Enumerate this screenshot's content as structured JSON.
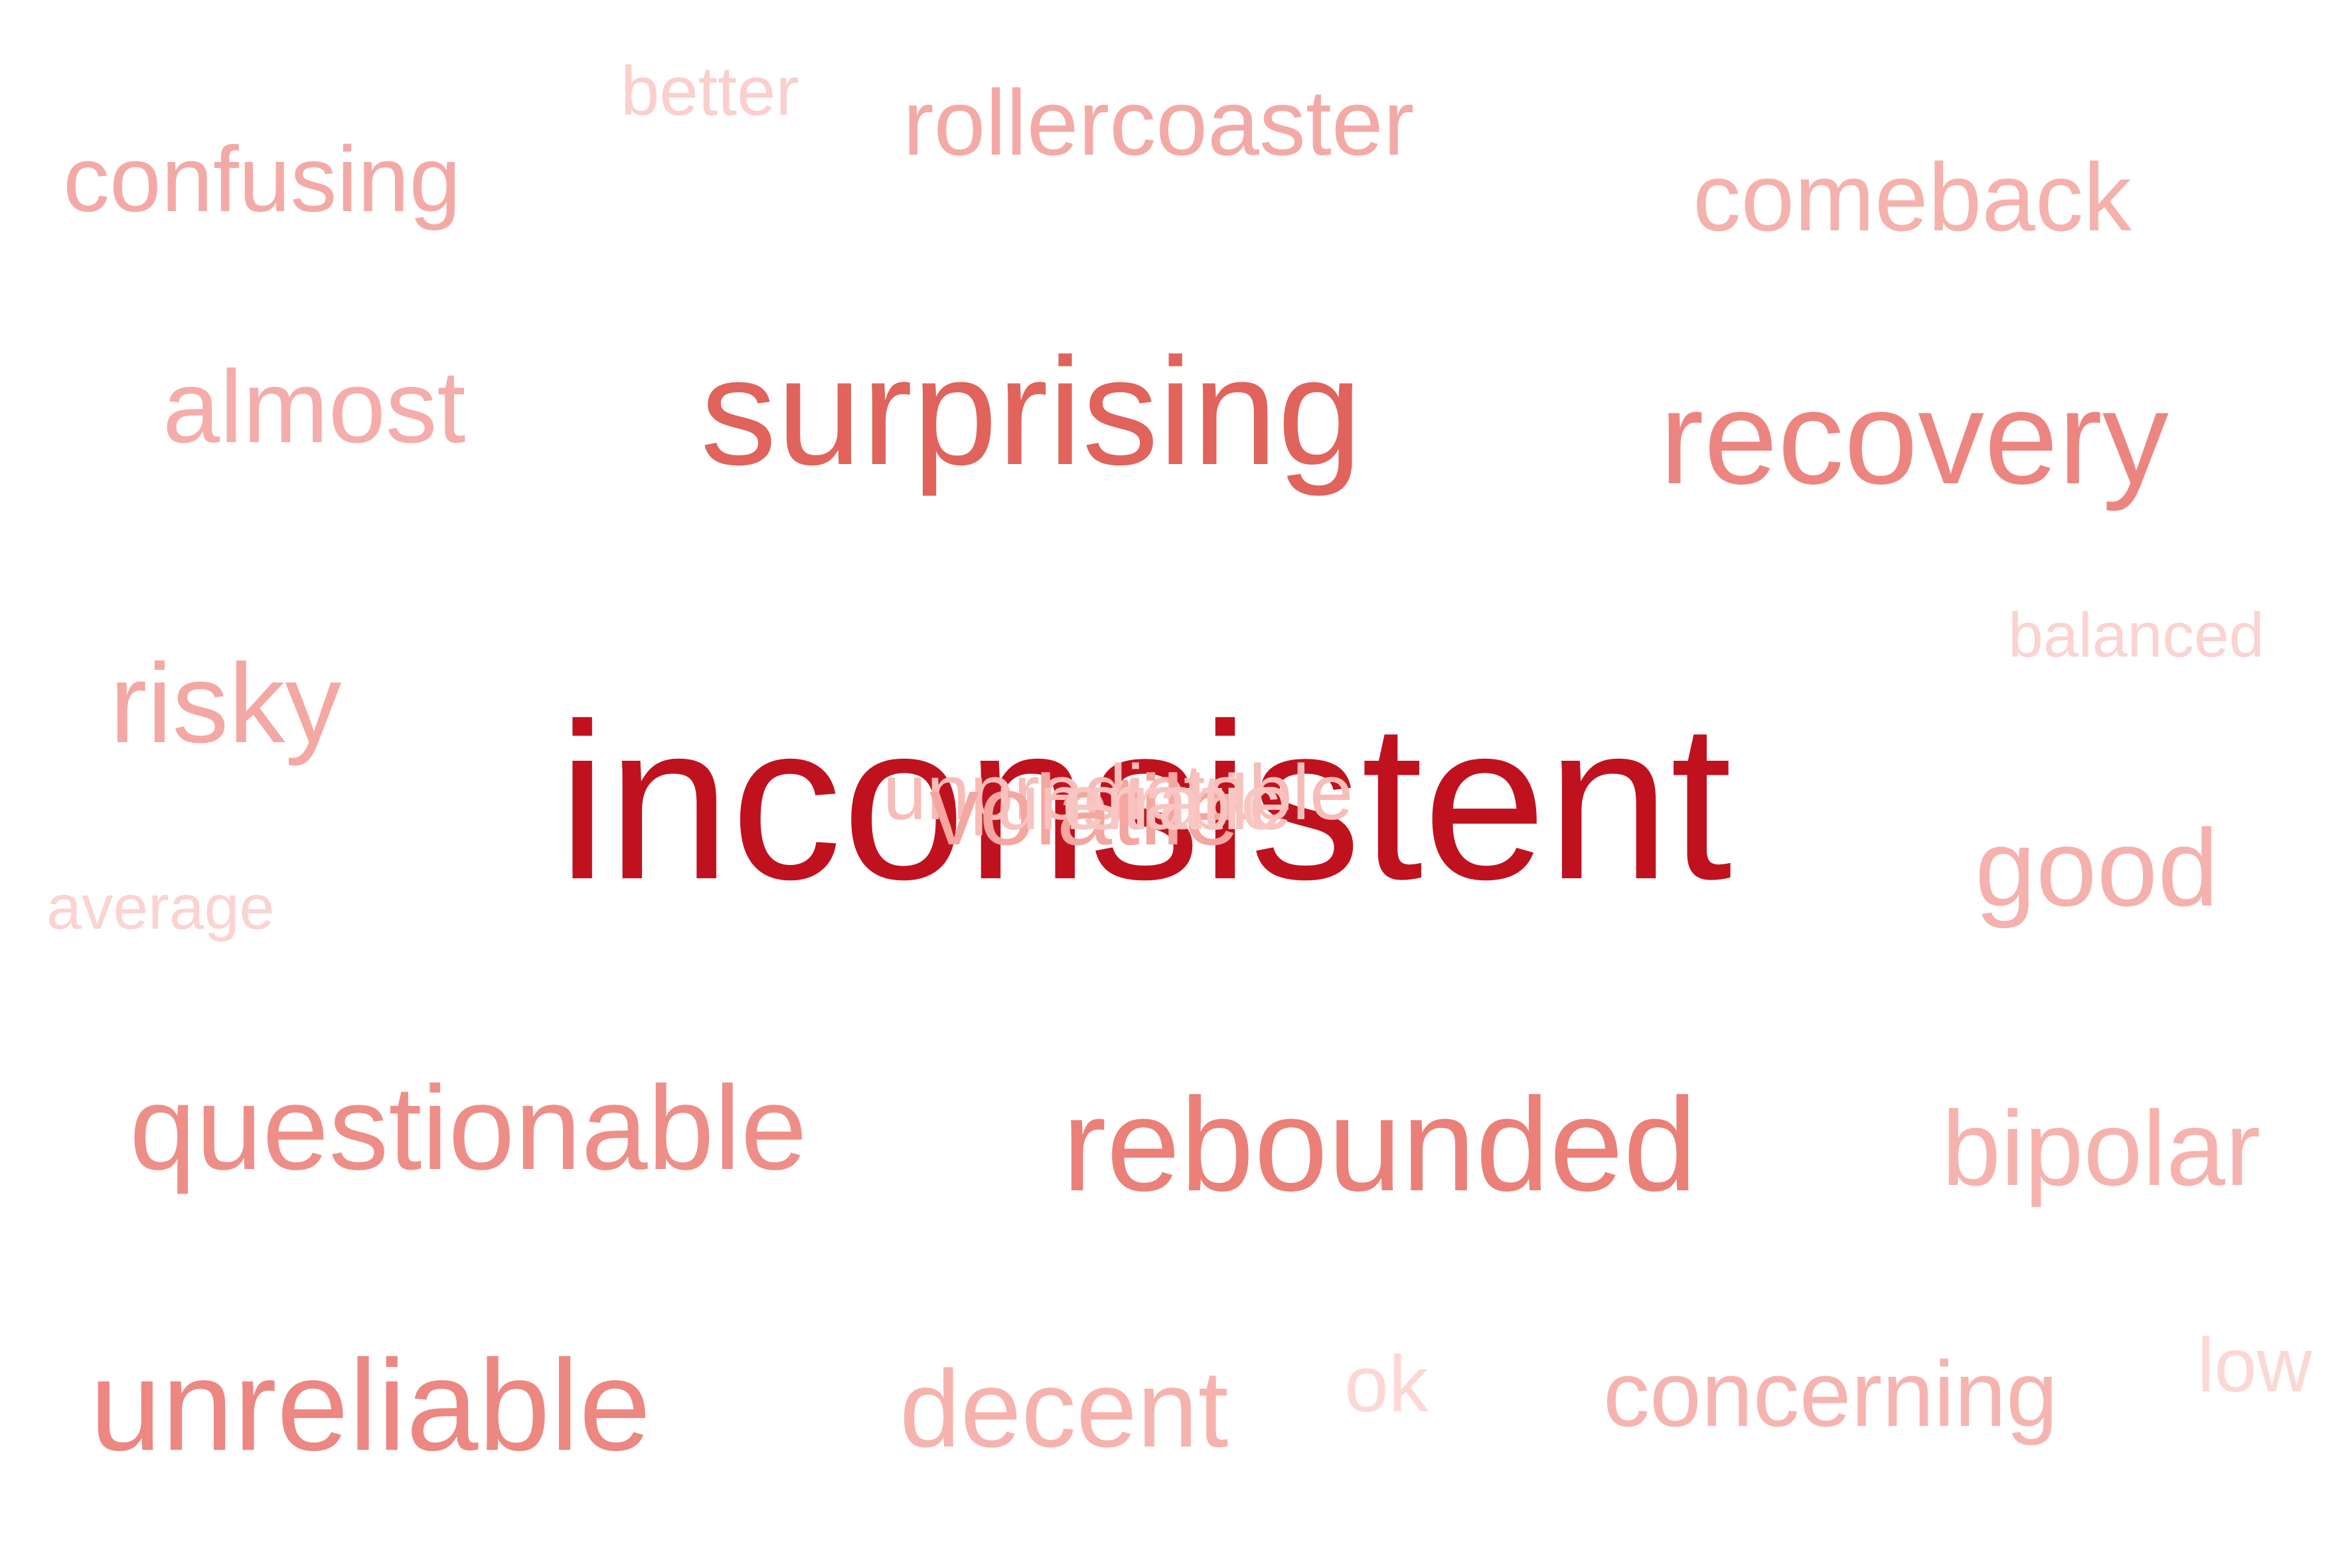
{
  "words": [
    {
      "text": "inconsistent",
      "weight": 1.0,
      "color": "#c0111f"
    },
    {
      "text": "surprising",
      "weight": 0.55,
      "color": "#e0635c"
    },
    {
      "text": "recovery",
      "weight": 0.5,
      "color": "#ec8580"
    },
    {
      "text": "rebounded",
      "weight": 0.48,
      "color": "#ea8078"
    },
    {
      "text": "unreliable",
      "weight": 0.46,
      "color": "#ec8782"
    },
    {
      "text": "questionable",
      "weight": 0.42,
      "color": "#ee8e88"
    },
    {
      "text": "good",
      "weight": 0.38,
      "color": "#f5b1ad"
    },
    {
      "text": "decent",
      "weight": 0.36,
      "color": "#f6b3ae"
    },
    {
      "text": "bipolar",
      "weight": 0.36,
      "color": "#f6b3ae"
    },
    {
      "text": "almost",
      "weight": 0.35,
      "color": "#f4adaa"
    },
    {
      "text": "risky",
      "weight": 0.35,
      "color": "#f4a8a4"
    },
    {
      "text": "comeback",
      "weight": 0.32,
      "color": "#f5b1ac"
    },
    {
      "text": "confusing",
      "weight": 0.31,
      "color": "#f3aaa6"
    },
    {
      "text": "rollercoaster",
      "weight": 0.31,
      "color": "#f3aaa6"
    },
    {
      "text": "concerning",
      "weight": 0.3,
      "color": "#f6b4b0"
    },
    {
      "text": "better",
      "weight": 0.22,
      "color": "#fbcfcc"
    },
    {
      "text": "balanced",
      "weight": 0.2,
      "color": "#fbd3d0"
    },
    {
      "text": "average",
      "weight": 0.2,
      "color": "#fbd3d0"
    },
    {
      "text": "ok",
      "weight": 0.25,
      "color": "#fcd8d5"
    },
    {
      "text": "low",
      "weight": 0.25,
      "color": "#fcd8d5"
    },
    {
      "text": "unpredictable",
      "weight": 0.2,
      "color": "#f7bdb8"
    },
    {
      "text": "volatile",
      "weight": 0.28,
      "color": "#f4a6a0"
    },
    {
      "text": "unstable",
      "weight": 0.22,
      "color": "#f8c3bf"
    },
    {
      "text": "erratic",
      "weight": 0.2,
      "color": "#f9c7c3"
    }
  ]
}
